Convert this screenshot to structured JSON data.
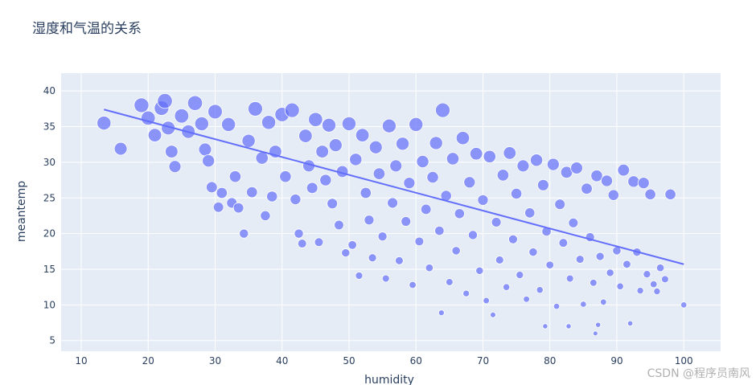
{
  "chart_data": {
    "type": "scatter",
    "title": "湿度和气温的关系",
    "xlabel": "humidity",
    "ylabel": "meantemp",
    "xlim": [
      7,
      105.5
    ],
    "ylim": [
      3.5,
      42.5
    ],
    "x_ticks": [
      10,
      20,
      30,
      40,
      50,
      60,
      70,
      80,
      90,
      100
    ],
    "y_ticks": [
      5,
      10,
      15,
      20,
      25,
      30,
      35,
      40
    ],
    "grid": true,
    "legend": "none",
    "marker_color": "#636efa",
    "marker_size_encodes": "meantemp",
    "plot_bg": "#e5ecf6",
    "trendline": {
      "x": [
        13.4,
        100
      ],
      "y": [
        37.4,
        15.7
      ],
      "color": "#636efa"
    },
    "points": [
      {
        "x": 13.4,
        "y": 35.5
      },
      {
        "x": 15.9,
        "y": 31.9
      },
      {
        "x": 19,
        "y": 38
      },
      {
        "x": 20,
        "y": 36.2
      },
      {
        "x": 21,
        "y": 33.8
      },
      {
        "x": 22,
        "y": 37.6
      },
      {
        "x": 22.5,
        "y": 38.6
      },
      {
        "x": 23,
        "y": 34.8
      },
      {
        "x": 23.5,
        "y": 31.5
      },
      {
        "x": 24,
        "y": 29.4
      },
      {
        "x": 25,
        "y": 36.5
      },
      {
        "x": 26,
        "y": 34.3
      },
      {
        "x": 27,
        "y": 38.3
      },
      {
        "x": 28,
        "y": 35.4
      },
      {
        "x": 28.5,
        "y": 31.8
      },
      {
        "x": 29,
        "y": 30.2
      },
      {
        "x": 29.5,
        "y": 26.5
      },
      {
        "x": 30,
        "y": 37.1
      },
      {
        "x": 30.5,
        "y": 23.7
      },
      {
        "x": 31,
        "y": 25.7
      },
      {
        "x": 32,
        "y": 35.3
      },
      {
        "x": 32.5,
        "y": 24.3
      },
      {
        "x": 33,
        "y": 28
      },
      {
        "x": 33.5,
        "y": 23.6
      },
      {
        "x": 34.3,
        "y": 20
      },
      {
        "x": 35,
        "y": 33
      },
      {
        "x": 35.5,
        "y": 25.8
      },
      {
        "x": 36,
        "y": 37.5
      },
      {
        "x": 37,
        "y": 30.6
      },
      {
        "x": 37.5,
        "y": 22.5
      },
      {
        "x": 38,
        "y": 35.6
      },
      {
        "x": 38.5,
        "y": 25.2
      },
      {
        "x": 39,
        "y": 31.5
      },
      {
        "x": 40,
        "y": 36.7
      },
      {
        "x": 40.5,
        "y": 28
      },
      {
        "x": 41.5,
        "y": 37.3
      },
      {
        "x": 42,
        "y": 24.8
      },
      {
        "x": 42.5,
        "y": 20
      },
      {
        "x": 43,
        "y": 18.6
      },
      {
        "x": 43.5,
        "y": 33.7
      },
      {
        "x": 44,
        "y": 29.5
      },
      {
        "x": 44.5,
        "y": 26.4
      },
      {
        "x": 45,
        "y": 36
      },
      {
        "x": 45.5,
        "y": 18.8
      },
      {
        "x": 46,
        "y": 31.5
      },
      {
        "x": 46.5,
        "y": 27.5
      },
      {
        "x": 47,
        "y": 35.2
      },
      {
        "x": 47.5,
        "y": 24.2
      },
      {
        "x": 48,
        "y": 32.4
      },
      {
        "x": 48.5,
        "y": 21.2
      },
      {
        "x": 49,
        "y": 28.7
      },
      {
        "x": 49.5,
        "y": 17.3
      },
      {
        "x": 50,
        "y": 35.4
      },
      {
        "x": 50.5,
        "y": 18.4
      },
      {
        "x": 51,
        "y": 30.4
      },
      {
        "x": 51.5,
        "y": 14.1
      },
      {
        "x": 52,
        "y": 33.8
      },
      {
        "x": 52.5,
        "y": 25.7
      },
      {
        "x": 53,
        "y": 21.9
      },
      {
        "x": 53.5,
        "y": 16.6
      },
      {
        "x": 54,
        "y": 32.1
      },
      {
        "x": 54.5,
        "y": 28.4
      },
      {
        "x": 55,
        "y": 19.6
      },
      {
        "x": 55.5,
        "y": 13.7
      },
      {
        "x": 56,
        "y": 35.1
      },
      {
        "x": 56.5,
        "y": 24.3
      },
      {
        "x": 57,
        "y": 29.5
      },
      {
        "x": 57.5,
        "y": 16.2
      },
      {
        "x": 58,
        "y": 32.6
      },
      {
        "x": 58.5,
        "y": 21.7
      },
      {
        "x": 59,
        "y": 27.1
      },
      {
        "x": 59.5,
        "y": 12.8
      },
      {
        "x": 60,
        "y": 35.3
      },
      {
        "x": 60.5,
        "y": 18.9
      },
      {
        "x": 61,
        "y": 30.1
      },
      {
        "x": 61.5,
        "y": 23.4
      },
      {
        "x": 62,
        "y": 15.2
      },
      {
        "x": 62.5,
        "y": 27.9
      },
      {
        "x": 63,
        "y": 32.7
      },
      {
        "x": 63.5,
        "y": 20.4
      },
      {
        "x": 63.8,
        "y": 8.9
      },
      {
        "x": 64,
        "y": 37.3
      },
      {
        "x": 64.5,
        "y": 25.3
      },
      {
        "x": 65,
        "y": 13.2
      },
      {
        "x": 65.5,
        "y": 30.5
      },
      {
        "x": 66,
        "y": 17.6
      },
      {
        "x": 66.5,
        "y": 22.8
      },
      {
        "x": 67,
        "y": 33.4
      },
      {
        "x": 67.5,
        "y": 11.6
      },
      {
        "x": 68,
        "y": 27.2
      },
      {
        "x": 68.5,
        "y": 19.8
      },
      {
        "x": 69,
        "y": 31.2
      },
      {
        "x": 69.5,
        "y": 14.8
      },
      {
        "x": 70,
        "y": 24.7
      },
      {
        "x": 70.5,
        "y": 10.6
      },
      {
        "x": 71,
        "y": 30.8
      },
      {
        "x": 71.5,
        "y": 8.6
      },
      {
        "x": 72,
        "y": 21.6
      },
      {
        "x": 72.5,
        "y": 16.3
      },
      {
        "x": 73,
        "y": 28.2
      },
      {
        "x": 73.5,
        "y": 12.5
      },
      {
        "x": 74,
        "y": 31.3
      },
      {
        "x": 74.5,
        "y": 19.2
      },
      {
        "x": 75,
        "y": 25.6
      },
      {
        "x": 75.5,
        "y": 14.2
      },
      {
        "x": 76,
        "y": 29.5
      },
      {
        "x": 76.5,
        "y": 10.8
      },
      {
        "x": 77,
        "y": 22.9
      },
      {
        "x": 77.5,
        "y": 17.4
      },
      {
        "x": 78,
        "y": 30.3
      },
      {
        "x": 78.5,
        "y": 12.1
      },
      {
        "x": 79,
        "y": 26.8
      },
      {
        "x": 79.3,
        "y": 7
      },
      {
        "x": 79.5,
        "y": 20.3
      },
      {
        "x": 80,
        "y": 15.6
      },
      {
        "x": 80.5,
        "y": 29.7
      },
      {
        "x": 81,
        "y": 9.8
      },
      {
        "x": 81.5,
        "y": 24.1
      },
      {
        "x": 82,
        "y": 18.7
      },
      {
        "x": 82.5,
        "y": 28.6
      },
      {
        "x": 82.8,
        "y": 7
      },
      {
        "x": 83,
        "y": 13.7
      },
      {
        "x": 83.5,
        "y": 21.5
      },
      {
        "x": 84,
        "y": 29.2
      },
      {
        "x": 84.5,
        "y": 16.4
      },
      {
        "x": 85,
        "y": 10.1
      },
      {
        "x": 85.5,
        "y": 26.3
      },
      {
        "x": 86,
        "y": 19.5
      },
      {
        "x": 86.5,
        "y": 13.1
      },
      {
        "x": 86.8,
        "y": 6
      },
      {
        "x": 87,
        "y": 28.1
      },
      {
        "x": 87.2,
        "y": 7.2
      },
      {
        "x": 87.5,
        "y": 16.8
      },
      {
        "x": 88,
        "y": 10.4
      },
      {
        "x": 88.5,
        "y": 27.4
      },
      {
        "x": 89,
        "y": 14.5
      },
      {
        "x": 89.5,
        "y": 25.4
      },
      {
        "x": 90,
        "y": 17.6
      },
      {
        "x": 90.5,
        "y": 12.6
      },
      {
        "x": 91,
        "y": 28.9
      },
      {
        "x": 91.5,
        "y": 15.7
      },
      {
        "x": 92,
        "y": 7.4
      },
      {
        "x": 92.5,
        "y": 27.3
      },
      {
        "x": 93,
        "y": 17.4
      },
      {
        "x": 93.5,
        "y": 12
      },
      {
        "x": 94,
        "y": 27.1
      },
      {
        "x": 94.5,
        "y": 14.3
      },
      {
        "x": 95,
        "y": 25.5
      },
      {
        "x": 95.5,
        "y": 12.9
      },
      {
        "x": 96,
        "y": 11.9
      },
      {
        "x": 96.5,
        "y": 15.2
      },
      {
        "x": 97.2,
        "y": 13.6
      },
      {
        "x": 98,
        "y": 25.5
      },
      {
        "x": 100,
        "y": 10
      }
    ]
  },
  "watermark": {
    "text": "CSDN @程序员南风"
  }
}
